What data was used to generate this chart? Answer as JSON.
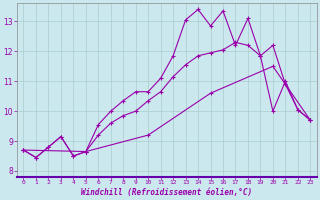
{
  "background_color": "#cce8ef",
  "line_color": "#9900aa",
  "grid_color": "#aacccc",
  "xlabel": "Windchill (Refroidissement éolien,°C)",
  "xlabel_color": "#9900aa",
  "tick_color": "#9900aa",
  "axis_bar_color": "#6600aa",
  "xlim": [
    -0.5,
    23.5
  ],
  "ylim": [
    7.8,
    13.6
  ],
  "xticks": [
    0,
    1,
    2,
    3,
    4,
    5,
    6,
    7,
    8,
    9,
    10,
    11,
    12,
    13,
    14,
    15,
    16,
    17,
    18,
    19,
    20,
    21,
    22,
    23
  ],
  "yticks": [
    8,
    9,
    10,
    11,
    12,
    13
  ],
  "line1_x": [
    0,
    1,
    2,
    3,
    4,
    5,
    6,
    7,
    8,
    9,
    10,
    11,
    12,
    13,
    14,
    15,
    16,
    17,
    18,
    19,
    20,
    21,
    22,
    23
  ],
  "line1_y": [
    8.7,
    8.45,
    8.8,
    9.15,
    8.5,
    8.65,
    9.55,
    10.0,
    10.35,
    10.65,
    10.65,
    11.1,
    11.85,
    13.05,
    13.4,
    12.85,
    13.35,
    12.2,
    13.1,
    11.85,
    10.0,
    11.0,
    10.05,
    9.7
  ],
  "line2_x": [
    0,
    1,
    2,
    3,
    4,
    5,
    6,
    7,
    8,
    9,
    10,
    11,
    12,
    13,
    14,
    15,
    16,
    17,
    18,
    19,
    20,
    21,
    22,
    23
  ],
  "line2_y": [
    8.7,
    8.45,
    8.8,
    9.15,
    8.5,
    8.65,
    9.2,
    9.6,
    9.85,
    10.0,
    10.35,
    10.65,
    11.15,
    11.55,
    11.85,
    11.95,
    12.05,
    12.3,
    12.2,
    11.85,
    12.2,
    10.9,
    10.05,
    9.7
  ],
  "line3_x": [
    0,
    5,
    10,
    15,
    20,
    23
  ],
  "line3_y": [
    8.7,
    8.65,
    9.2,
    10.6,
    11.5,
    9.7
  ],
  "marker": "+"
}
